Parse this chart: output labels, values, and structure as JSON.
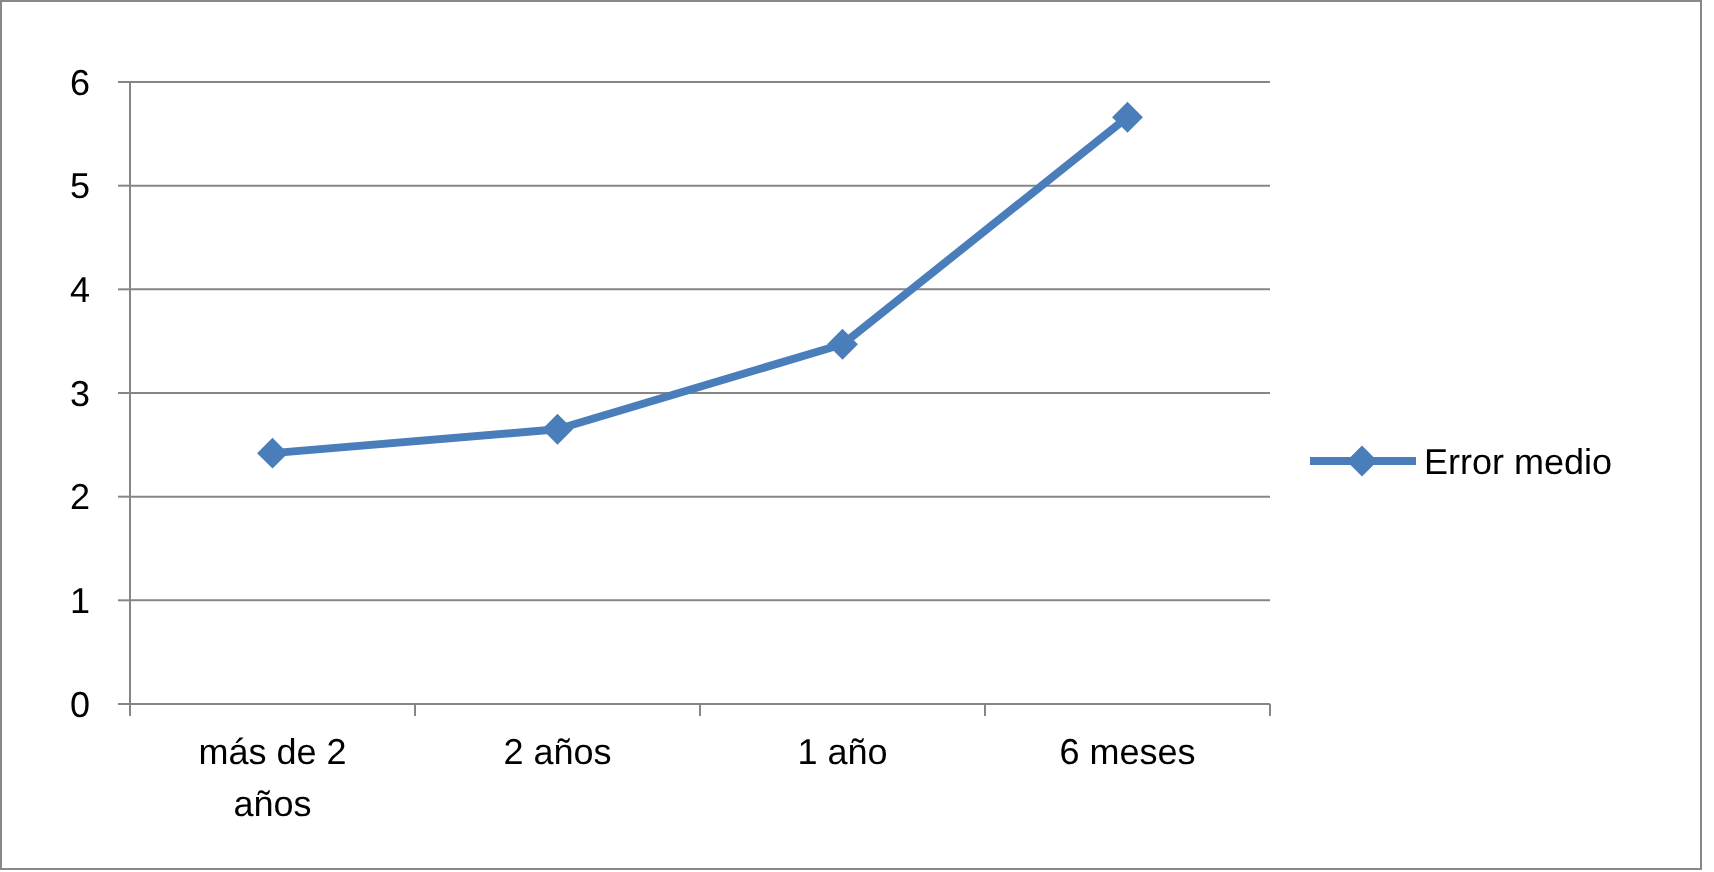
{
  "chart_data": {
    "type": "line",
    "categories": [
      "más de 2 años",
      "2 años",
      "1 año",
      "6 meses"
    ],
    "series": [
      {
        "name": "Error medio",
        "color": "#4a7ebb",
        "values": [
          2.42,
          2.65,
          3.47,
          5.66
        ]
      }
    ],
    "ylim": [
      0,
      6
    ],
    "yticks": [
      0,
      1,
      2,
      3,
      4,
      5,
      6
    ],
    "grid": "y",
    "legend": "right",
    "marker": "diamond",
    "line_style": "solid"
  }
}
